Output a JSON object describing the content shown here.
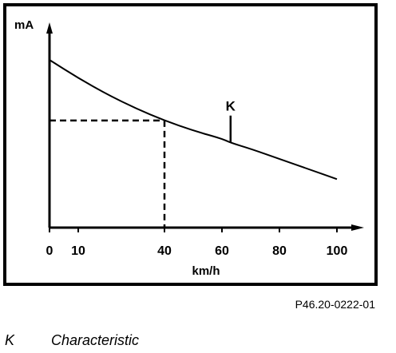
{
  "chart_data": {
    "type": "line",
    "ylabel": "mA",
    "xlabel": "km/h",
    "xlim": [
      0,
      100
    ],
    "x_ticks": [
      0,
      10,
      40,
      60,
      80,
      100
    ],
    "grid": false,
    "series": [
      {
        "x": [
          0,
          10,
          20,
          30,
          40,
          50,
          60,
          63,
          70,
          80,
          90,
          100
        ],
        "y": [
          0.83,
          0.74,
          0.66,
          0.59,
          0.53,
          0.48,
          0.44,
          0.42,
          0.39,
          0.34,
          0.29,
          0.24
        ]
      }
    ],
    "reference_point": {
      "x": 40,
      "y": 0.53
    },
    "annotations": [
      {
        "label": "K",
        "x": 63,
        "y": 0.42
      }
    ]
  },
  "reference_code": "P46.20-0222-01",
  "legend": [
    {
      "key": "K",
      "description": "Characteristic"
    }
  ]
}
